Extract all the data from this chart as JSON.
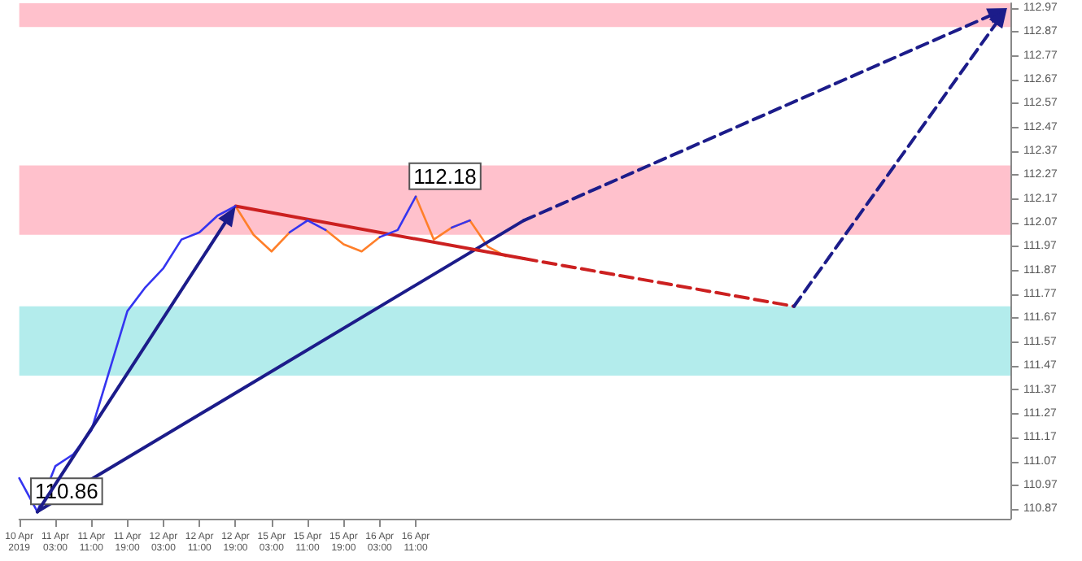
{
  "chart_data": {
    "type": "line",
    "categories": [
      "10 Apr 2019",
      null,
      "11 Apr 03:00",
      null,
      "11 Apr 11:00",
      null,
      "11 Apr 19:00",
      null,
      "12 Apr 03:00",
      null,
      "12 Apr 11:00",
      null,
      "12 Apr 19:00",
      null,
      "15 Apr 03:00",
      null,
      "15 Apr 11:00",
      null,
      "15 Apr 19:00",
      null,
      "16 Apr 03:00",
      null,
      "16 Apr 11:00",
      null,
      null,
      null,
      null,
      null,
      null,
      null,
      null,
      null,
      null,
      null,
      null,
      null,
      null,
      null,
      null,
      null,
      null,
      null,
      null,
      null,
      null,
      null,
      null,
      null,
      null,
      null,
      null,
      null,
      null,
      null,
      null,
      null
    ],
    "ylim": [
      110.83,
      112.99
    ],
    "yticks": [
      110.87,
      110.97,
      111.07,
      111.17,
      111.27,
      111.37,
      111.47,
      111.57,
      111.67,
      111.77,
      111.87,
      111.97,
      112.07,
      112.17,
      112.27,
      112.37,
      112.47,
      112.57,
      112.67,
      112.77,
      112.87,
      112.97
    ],
    "grid": false,
    "line_style": "solid",
    "bands": [
      {
        "axis": "y",
        "from": 112.89,
        "to": 112.99,
        "color": "#ffc1cc"
      },
      {
        "axis": "y",
        "from": 112.02,
        "to": 112.31,
        "color": "#ffc1cc"
      },
      {
        "axis": "y",
        "from": 111.43,
        "to": 111.72,
        "color": "#b3ecec"
      }
    ],
    "series": [
      {
        "color": "#3535f0",
        "values": [
          111.0,
          110.86,
          111.05,
          111.1,
          111.2,
          111.45,
          111.7,
          111.8,
          111.88,
          112.0,
          112.03,
          112.1,
          112.14,
          null,
          null,
          112.03,
          112.08,
          112.04,
          null,
          null,
          112.01,
          112.04,
          112.18,
          null,
          112.05,
          112.08,
          null,
          null,
          null,
          null,
          null,
          null,
          null,
          null,
          null,
          null,
          null,
          null,
          null,
          null,
          null,
          null,
          null,
          null,
          null,
          null,
          null,
          null,
          null,
          null,
          null,
          null,
          null,
          null,
          null,
          null
        ],
        "value_labels": [
          null,
          "110.86",
          null,
          null,
          null,
          null,
          null,
          null,
          null,
          null,
          null,
          null,
          null,
          null,
          null,
          null,
          null,
          null,
          null,
          null,
          null,
          null,
          "112.18",
          null,
          null,
          null,
          null,
          null,
          null,
          null,
          null,
          null,
          null,
          null,
          null,
          null,
          null,
          null,
          null,
          null,
          null,
          null,
          null,
          null,
          null,
          null,
          null,
          null,
          null,
          null,
          null,
          null,
          null,
          null,
          null,
          null
        ]
      },
      {
        "color": "#ff7f2a",
        "values": [
          null,
          null,
          null,
          null,
          null,
          null,
          null,
          null,
          null,
          null,
          null,
          null,
          112.14,
          112.02,
          111.95,
          112.03,
          null,
          112.04,
          111.98,
          111.95,
          112.01,
          null,
          112.18,
          112.0,
          112.05,
          112.08,
          111.97,
          111.93,
          null,
          null,
          null,
          null,
          null,
          null,
          null,
          null,
          null,
          null,
          null,
          null,
          null,
          null,
          null,
          null,
          null,
          null,
          null,
          null,
          null,
          null,
          null,
          null,
          null,
          null,
          null,
          null
        ]
      },
      {
        "color": "#1c1c8a",
        "values": [
          null,
          110.86,
          null,
          null,
          null,
          null,
          null,
          null,
          null,
          null,
          null,
          null,
          null,
          null,
          null,
          null,
          null,
          null,
          null,
          null,
          null,
          null,
          null,
          null,
          null,
          null,
          null,
          null,
          112.08,
          null,
          null,
          null,
          null,
          null,
          null,
          null,
          null,
          null,
          null,
          null,
          null,
          null,
          null,
          null,
          null,
          null,
          null,
          null,
          null,
          null,
          null,
          null,
          null,
          null,
          null,
          null
        ]
      },
      {
        "color": "#cc2020",
        "values": [
          null,
          null,
          null,
          null,
          null,
          null,
          null,
          null,
          null,
          null,
          null,
          null,
          112.14,
          null,
          null,
          null,
          null,
          null,
          null,
          null,
          null,
          null,
          null,
          null,
          null,
          null,
          null,
          null,
          111.92,
          null,
          null,
          null,
          null,
          null,
          null,
          null,
          null,
          null,
          null,
          null,
          null,
          null,
          null,
          null,
          null,
          null,
          null,
          null,
          null,
          null,
          null,
          null,
          null,
          null,
          null,
          null
        ]
      },
      {
        "color": "#cc2020",
        "line_style": "dashed",
        "values": [
          null,
          null,
          null,
          null,
          null,
          null,
          null,
          null,
          null,
          null,
          null,
          null,
          null,
          null,
          null,
          null,
          null,
          null,
          null,
          null,
          null,
          null,
          null,
          null,
          null,
          null,
          null,
          null,
          111.92,
          null,
          null,
          null,
          null,
          null,
          null,
          null,
          null,
          null,
          null,
          null,
          null,
          null,
          null,
          111.72,
          null,
          null,
          null,
          null,
          null,
          null,
          null,
          null,
          null,
          null,
          null,
          null
        ]
      }
    ]
  }
}
